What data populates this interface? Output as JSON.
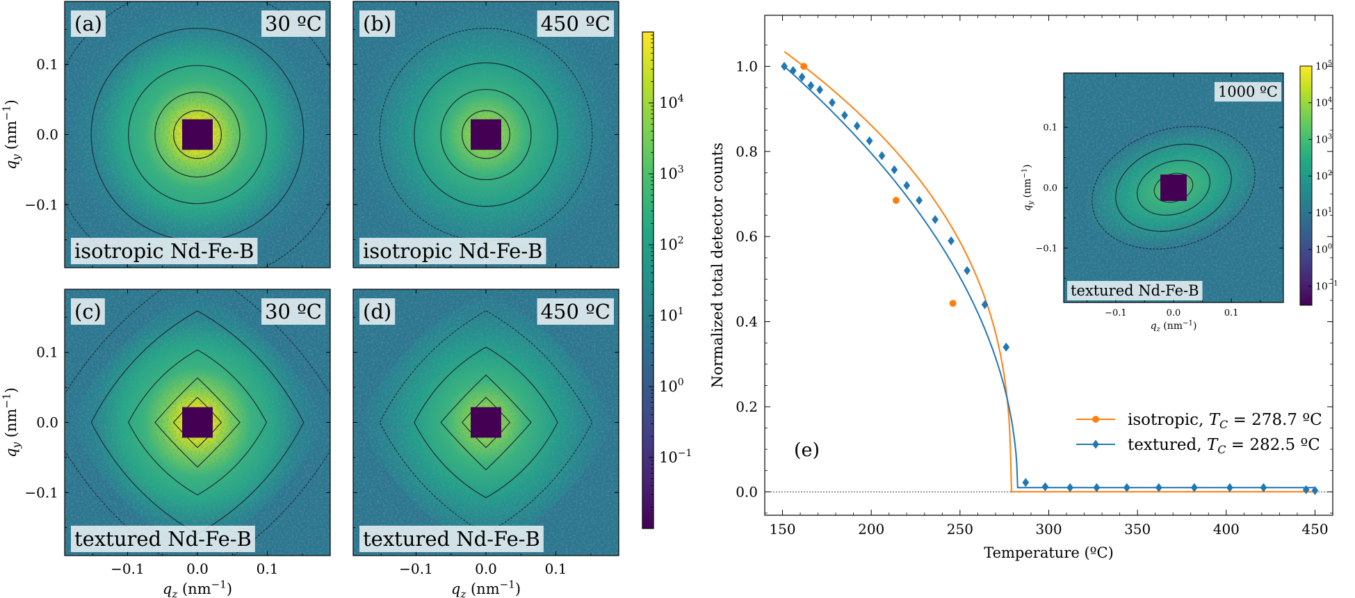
{
  "chart_data": [
    {
      "type": "heatmap",
      "panel_label": "(a)",
      "temperature_label": "30 ºC",
      "sample_label": "isotropic Nd-Fe-B",
      "pattern": "isotropic",
      "xlabel": "",
      "ylabel": "q",
      "ylabel_sub": "y",
      "ylabel_unit": " (nm",
      "ylabel_sup": "−1",
      "ylabel_close": ")",
      "xlim": [
        -0.19,
        0.19
      ],
      "ylim": [
        -0.19,
        0.19
      ],
      "x_ticks": [],
      "y_ticks": [
        "0.1",
        "0.0",
        "−0.1"
      ]
    },
    {
      "type": "heatmap",
      "panel_label": "(b)",
      "temperature_label": "450 ºC",
      "sample_label": "isotropic Nd-Fe-B",
      "pattern": "isotropic-weak",
      "xlabel": "",
      "ylabel": "",
      "xlim": [
        -0.19,
        0.19
      ],
      "ylim": [
        -0.19,
        0.19
      ],
      "x_ticks": [],
      "y_ticks": []
    },
    {
      "type": "heatmap",
      "panel_label": "(c)",
      "temperature_label": "30 ºC",
      "sample_label": "textured Nd-Fe-B",
      "pattern": "textured",
      "xlabel": "q",
      "xlabel_sub": "z",
      "xlabel_unit": " (nm",
      "xlabel_sup": "−1",
      "xlabel_close": ")",
      "ylabel": "q",
      "ylabel_sub": "y",
      "ylabel_unit": " (nm",
      "ylabel_sup": "−1",
      "ylabel_close": ")",
      "xlim": [
        -0.19,
        0.19
      ],
      "ylim": [
        -0.19,
        0.19
      ],
      "x_ticks": [
        "−0.1",
        "0.0",
        "0.1"
      ],
      "y_ticks": [
        "0.1",
        "0.0",
        "−0.1"
      ]
    },
    {
      "type": "heatmap",
      "panel_label": "(d)",
      "temperature_label": "450 ºC",
      "sample_label": "textured Nd-Fe-B",
      "pattern": "textured-weak",
      "xlabel": "q",
      "xlabel_sub": "z",
      "xlabel_unit": " (nm",
      "xlabel_sup": "−1",
      "xlabel_close": ")",
      "ylabel": "",
      "xlim": [
        -0.19,
        0.19
      ],
      "ylim": [
        -0.19,
        0.19
      ],
      "x_ticks": [
        "−0.1",
        "0.0",
        "0.1"
      ],
      "y_ticks": []
    },
    {
      "type": "colorbar",
      "scale": "log",
      "range": [
        0.01,
        100000
      ],
      "tick_mantissa": "10",
      "ticks": [
        {
          "value": 0.1,
          "exp": "−1"
        },
        {
          "value": 1,
          "exp": "0"
        },
        {
          "value": 10,
          "exp": "1"
        },
        {
          "value": 100,
          "exp": "2"
        },
        {
          "value": 1000,
          "exp": "3"
        },
        {
          "value": 10000,
          "exp": "4"
        }
      ]
    },
    {
      "type": "line",
      "panel_label": "(e)",
      "xlabel": "Temperature (ºC)",
      "ylabel": "Normalized total detector counts",
      "xlim": [
        140,
        460
      ],
      "ylim": [
        -0.055,
        1.12
      ],
      "x_ticks": [
        150,
        200,
        250,
        300,
        350,
        400,
        450
      ],
      "y_ticks": [
        0.0,
        0.2,
        0.4,
        0.6,
        0.8,
        1.0
      ],
      "y_tick_labels": [
        "0.0",
        "0.2",
        "0.4",
        "0.6",
        "0.8",
        "1.0"
      ],
      "legend_position": "center-right",
      "series": [
        {
          "name": "isotropic",
          "tc_symbol": "T",
          "tc_sub": "C",
          "tc_value": " = 278.7 ºC",
          "color": "#ff7f0e",
          "marker": "circle",
          "x": [
            162,
            214,
            246
          ],
          "y": [
            1.0,
            0.685,
            0.443
          ],
          "fit_tc": 278.7,
          "fit_beta": 0.379,
          "fit_x_start": 151
        },
        {
          "name": "textured",
          "tc_symbol": "T",
          "tc_sub": "C",
          "tc_value": " = 282.5 ºC",
          "color": "#1f77b4",
          "marker": "diamond",
          "x": [
            151,
            156,
            161,
            166,
            171,
            178,
            185,
            192,
            199,
            206,
            213,
            220,
            227,
            236,
            245,
            254,
            264,
            276,
            287,
            298,
            312,
            327,
            344,
            362,
            382,
            402,
            421,
            445,
            450
          ],
          "y": [
            1.0,
            0.99,
            0.975,
            0.955,
            0.945,
            0.915,
            0.885,
            0.86,
            0.825,
            0.79,
            0.757,
            0.72,
            0.685,
            0.64,
            0.59,
            0.52,
            0.44,
            0.34,
            0.022,
            0.012,
            0.01,
            0.01,
            0.01,
            0.01,
            0.01,
            0.01,
            0.01,
            0.005,
            0.003
          ],
          "fit_tc": 282.5,
          "fit_beta": 0.49,
          "fit_x_start": 151,
          "baseline": 0.01
        }
      ]
    },
    {
      "type": "heatmap",
      "temperature_label": "1000 ºC",
      "sample_label": "textured Nd-Fe-B",
      "pattern": "inset",
      "xlabel": "q",
      "xlabel_sub": "z",
      "xlabel_unit": " (nm",
      "xlabel_sup": "−1",
      "xlabel_close": ")",
      "ylabel": "q",
      "ylabel_sub": "y",
      "ylabel_unit": " (nm",
      "ylabel_sup": "−1",
      "ylabel_close": ")",
      "xlim": [
        -0.19,
        0.19
      ],
      "ylim": [
        -0.19,
        0.19
      ],
      "x_ticks": [
        "−0.1",
        "0.0",
        "0.1"
      ],
      "y_ticks": [
        "0.1",
        "0.0",
        "−0.1"
      ],
      "colorbar_mantissa": "10",
      "colorbar_ticks": [
        {
          "value": 0.1,
          "exp": "−1"
        },
        {
          "value": 1,
          "exp": "0"
        },
        {
          "value": 10,
          "exp": "1"
        },
        {
          "value": 100,
          "exp": "2"
        },
        {
          "value": 1000,
          "exp": "3"
        },
        {
          "value": 10000,
          "exp": "4"
        },
        {
          "value": 100000,
          "exp": "5"
        }
      ],
      "colorbar_range": [
        0.03,
        100000
      ]
    }
  ]
}
